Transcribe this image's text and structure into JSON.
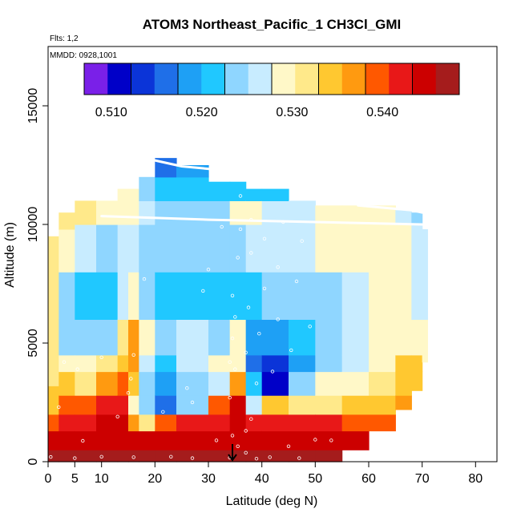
{
  "chart_data": {
    "type": "heatmap",
    "title": "ATOM3 Northeast_Pacific_1 CH3Cl_GMI",
    "flights_label": "Flts: 1,2",
    "dates_label": "MMDD: 0928,1001",
    "xlabel": "Latitude (deg N)",
    "ylabel": "Altitude (m)",
    "xlim": [
      0,
      84
    ],
    "ylim": [
      0,
      17500
    ],
    "xticks": [
      0,
      5,
      10,
      20,
      30,
      40,
      50,
      60,
      70,
      80
    ],
    "xtick_labels": [
      "0",
      "5",
      "10",
      "20",
      "30",
      "40",
      "50",
      "60",
      "70",
      "80"
    ],
    "yticks": [
      0,
      5000,
      10000,
      15000
    ],
    "ytick_labels": [
      "0",
      "5000",
      "10000",
      "15000"
    ],
    "colorbar": {
      "min": 0.507,
      "max": 0.5485,
      "colors": [
        "#7a20e8",
        "#0000c8",
        "#0b34d8",
        "#1f6fe8",
        "#1ea0f5",
        "#20c8ff",
        "#8fd6ff",
        "#c8ecff",
        "#fff8c8",
        "#ffe98a",
        "#ffc830",
        "#ff9a10",
        "#ff5800",
        "#e81818",
        "#cc0000",
        "#a51c1c"
      ],
      "ticks": [
        0.51,
        0.52,
        0.53,
        0.54
      ],
      "tick_labels": [
        "0.510",
        "0.520",
        "0.530",
        "0.540"
      ]
    },
    "columns": [
      {
        "lat": [
          0,
          2
        ],
        "top": 9500,
        "levels": [
          [
            0,
            0.548
          ],
          [
            500,
            0.545
          ],
          [
            1300,
            0.539
          ],
          [
            2000,
            0.534
          ],
          [
            3200,
            0.531
          ],
          [
            4500,
            0.531
          ],
          [
            6000,
            0.531
          ],
          [
            8000,
            0.531
          ]
        ]
      },
      {
        "lat": [
          2,
          5
        ],
        "top": 10500,
        "levels": [
          [
            0,
            0.548
          ],
          [
            500,
            0.545
          ],
          [
            1300,
            0.541
          ],
          [
            2000,
            0.539
          ],
          [
            2800,
            0.533
          ],
          [
            3800,
            0.529
          ],
          [
            4500,
            0.524
          ],
          [
            6000,
            0.523
          ],
          [
            8000,
            0.529
          ],
          [
            9800,
            0.532
          ]
        ]
      },
      {
        "lat": [
          5,
          9
        ],
        "top": 11000,
        "levels": [
          [
            0,
            0.548
          ],
          [
            500,
            0.545
          ],
          [
            1300,
            0.543
          ],
          [
            2000,
            0.54
          ],
          [
            2800,
            0.531
          ],
          [
            3800,
            0.528
          ],
          [
            4500,
            0.523
          ],
          [
            6000,
            0.522
          ],
          [
            8000,
            0.527
          ],
          [
            10000,
            0.531
          ]
        ]
      },
      {
        "lat": [
          9,
          13
        ],
        "top": 11000,
        "levels": [
          [
            0,
            0.548
          ],
          [
            500,
            0.545
          ],
          [
            1300,
            0.544
          ],
          [
            2000,
            0.541
          ],
          [
            2800,
            0.537
          ],
          [
            3800,
            0.531
          ],
          [
            4500,
            0.524
          ],
          [
            6000,
            0.522
          ],
          [
            8000,
            0.525
          ],
          [
            10000,
            0.528
          ]
        ]
      },
      {
        "lat": [
          13,
          15
        ],
        "top": 11500,
        "levels": [
          [
            0,
            0.548
          ],
          [
            500,
            0.545
          ],
          [
            1300,
            0.544
          ],
          [
            2000,
            0.542
          ],
          [
            2800,
            0.539
          ],
          [
            3800,
            0.535
          ],
          [
            4500,
            0.532
          ],
          [
            6000,
            0.527
          ],
          [
            8000,
            0.526
          ],
          [
            10000,
            0.528
          ]
        ]
      },
      {
        "lat": [
          15,
          17
        ],
        "top": 11500,
        "levels": [
          [
            0,
            0.548
          ],
          [
            500,
            0.545
          ],
          [
            1300,
            0.537
          ],
          [
            2000,
            0.53
          ],
          [
            2800,
            0.535
          ],
          [
            3800,
            0.538
          ],
          [
            4500,
            0.536
          ],
          [
            6000,
            0.528
          ],
          [
            8000,
            0.526
          ],
          [
            10000,
            0.528
          ]
        ]
      },
      {
        "lat": [
          17,
          20
        ],
        "top": 12000,
        "levels": [
          [
            0,
            0.548
          ],
          [
            500,
            0.545
          ],
          [
            1300,
            0.531
          ],
          [
            2000,
            0.524
          ],
          [
            2800,
            0.524
          ],
          [
            3800,
            0.527
          ],
          [
            4500,
            0.528
          ],
          [
            6000,
            0.524
          ],
          [
            8000,
            0.523
          ],
          [
            10000,
            0.526
          ],
          [
            11000,
            0.523
          ]
        ]
      },
      {
        "lat": [
          20,
          24
        ],
        "top": 12800,
        "levels": [
          [
            0,
            0.548
          ],
          [
            500,
            0.545
          ],
          [
            1300,
            0.54
          ],
          [
            2000,
            0.516
          ],
          [
            2800,
            0.518
          ],
          [
            3800,
            0.522
          ],
          [
            4500,
            0.523
          ],
          [
            6000,
            0.521
          ],
          [
            8000,
            0.523
          ],
          [
            10000,
            0.525
          ],
          [
            11000,
            0.521
          ],
          [
            12000,
            0.516
          ]
        ]
      },
      {
        "lat": [
          24,
          30
        ],
        "top": 12500,
        "levels": [
          [
            0,
            0.548
          ],
          [
            500,
            0.545
          ],
          [
            1300,
            0.541
          ],
          [
            2000,
            0.523
          ],
          [
            2800,
            0.524
          ],
          [
            3800,
            0.526
          ],
          [
            4500,
            0.526
          ],
          [
            6000,
            0.522
          ],
          [
            8000,
            0.523
          ],
          [
            10000,
            0.525
          ],
          [
            11000,
            0.521
          ],
          [
            12000,
            0.518
          ]
        ]
      },
      {
        "lat": [
          30,
          34
        ],
        "top": 11800,
        "levels": [
          [
            0,
            0.548
          ],
          [
            500,
            0.545
          ],
          [
            1300,
            0.543
          ],
          [
            2000,
            0.54
          ],
          [
            2800,
            0.527
          ],
          [
            3800,
            0.53
          ],
          [
            4500,
            0.525
          ],
          [
            6000,
            0.522
          ],
          [
            8000,
            0.524
          ],
          [
            10000,
            0.525
          ],
          [
            11000,
            0.521
          ]
        ]
      },
      {
        "lat": [
          34,
          37
        ],
        "top": 11800,
        "levels": [
          [
            0,
            0.548
          ],
          [
            500,
            0.545
          ],
          [
            1300,
            0.544
          ],
          [
            2000,
            0.545
          ],
          [
            2800,
            0.537
          ],
          [
            3800,
            0.53
          ],
          [
            4500,
            0.528
          ],
          [
            6000,
            0.522
          ],
          [
            8000,
            0.524
          ],
          [
            10000,
            0.528
          ],
          [
            11000,
            0.521
          ]
        ]
      },
      {
        "lat": [
          37,
          40
        ],
        "top": 11500,
        "levels": [
          [
            0,
            0.548
          ],
          [
            500,
            0.545
          ],
          [
            1300,
            0.543
          ],
          [
            2000,
            0.527
          ],
          [
            2800,
            0.52
          ],
          [
            3800,
            0.515
          ],
          [
            4500,
            0.518
          ],
          [
            6000,
            0.521
          ],
          [
            8000,
            0.526
          ],
          [
            10000,
            0.529
          ],
          [
            11000,
            0.521
          ]
        ]
      },
      {
        "lat": [
          40,
          45
        ],
        "top": 11500,
        "levels": [
          [
            0,
            0.548
          ],
          [
            500,
            0.545
          ],
          [
            1300,
            0.542
          ],
          [
            2000,
            0.534
          ],
          [
            2800,
            0.512
          ],
          [
            3800,
            0.513
          ],
          [
            4500,
            0.519
          ],
          [
            6000,
            0.523
          ],
          [
            8000,
            0.527
          ],
          [
            10000,
            0.527
          ],
          [
            11000,
            0.521
          ]
        ]
      },
      {
        "lat": [
          45,
          50
        ],
        "top": 11000,
        "levels": [
          [
            0,
            0.548
          ],
          [
            500,
            0.545
          ],
          [
            1300,
            0.542
          ],
          [
            2000,
            0.532
          ],
          [
            2800,
            0.523
          ],
          [
            3800,
            0.518
          ],
          [
            4500,
            0.521
          ],
          [
            6000,
            0.524
          ],
          [
            8000,
            0.527
          ],
          [
            10000,
            0.527
          ]
        ]
      },
      {
        "lat": [
          50,
          55
        ],
        "top": 10800,
        "levels": [
          [
            0,
            0.548
          ],
          [
            500,
            0.545
          ],
          [
            1300,
            0.541
          ],
          [
            2000,
            0.532
          ],
          [
            2800,
            0.529
          ],
          [
            3800,
            0.525
          ],
          [
            4500,
            0.523
          ],
          [
            6000,
            0.525
          ],
          [
            8000,
            0.528
          ],
          [
            10000,
            0.528
          ]
        ]
      },
      {
        "lat": [
          55,
          60
        ],
        "top": 10800,
        "levels": [
          [
            500,
            0.545
          ],
          [
            1300,
            0.54
          ],
          [
            2000,
            0.533
          ],
          [
            2800,
            0.53
          ],
          [
            3800,
            0.527
          ],
          [
            4500,
            0.526
          ],
          [
            6000,
            0.527
          ],
          [
            8000,
            0.529
          ],
          [
            10000,
            0.528
          ]
        ]
      },
      {
        "lat": [
          60,
          65
        ],
        "top": 10800,
        "levels": [
          [
            1300,
            0.539
          ],
          [
            2000,
            0.535
          ],
          [
            2800,
            0.532
          ],
          [
            3800,
            0.529
          ],
          [
            4500,
            0.528
          ],
          [
            6000,
            0.528
          ],
          [
            8000,
            0.529
          ],
          [
            10000,
            0.528
          ]
        ]
      },
      {
        "lat": [
          65,
          68
        ],
        "top": 10600,
        "levels": [
          [
            2200,
            0.537
          ],
          [
            2800,
            0.535
          ],
          [
            3800,
            0.533
          ],
          [
            4500,
            0.53
          ],
          [
            6000,
            0.528
          ],
          [
            8000,
            0.528
          ],
          [
            10000,
            0.527
          ]
        ]
      },
      {
        "lat": [
          68,
          70
        ],
        "top": 10500,
        "levels": [
          [
            3000,
            0.535
          ],
          [
            3800,
            0.533
          ],
          [
            4500,
            0.53
          ],
          [
            6000,
            0.527
          ],
          [
            8000,
            0.527
          ],
          [
            10000,
            0.524
          ]
        ]
      },
      {
        "lat": [
          70,
          71
        ],
        "top": 9800,
        "levels": [
          [
            4200,
            0.53
          ],
          [
            6000,
            0.527
          ],
          [
            8000,
            0.526
          ]
        ]
      }
    ],
    "flight_tracks": [
      {
        "points": [
          [
            10,
            10350
          ],
          [
            30,
            10200
          ],
          [
            50,
            10100
          ],
          [
            70,
            10000
          ]
        ]
      },
      {
        "points": [
          [
            20,
            12700
          ],
          [
            25,
            12450
          ],
          [
            32,
            12300
          ]
        ]
      },
      {
        "points": [
          [
            58,
            10800
          ],
          [
            68,
            10600
          ],
          [
            70,
            10500
          ]
        ]
      }
    ],
    "observation_points": [
      [
        0.5,
        200
      ],
      [
        5,
        150
      ],
      [
        6.5,
        880
      ],
      [
        10,
        210
      ],
      [
        16,
        190
      ],
      [
        23,
        210
      ],
      [
        27,
        150
      ],
      [
        34,
        170
      ],
      [
        39,
        130
      ],
      [
        41.5,
        190
      ],
      [
        47,
        150
      ],
      [
        2,
        2300
      ],
      [
        3,
        4200
      ],
      [
        5.5,
        3900
      ],
      [
        10,
        4400
      ],
      [
        15,
        2900
      ],
      [
        15.5,
        3500
      ],
      [
        16,
        4500
      ],
      [
        21.5,
        2100
      ],
      [
        27,
        2500
      ],
      [
        34,
        2700
      ],
      [
        34,
        4200
      ],
      [
        34.5,
        5200
      ],
      [
        35,
        3900
      ],
      [
        35,
        6100
      ],
      [
        34.5,
        7000
      ],
      [
        35.5,
        8600
      ],
      [
        36,
        9800
      ],
      [
        36,
        11200
      ],
      [
        37,
        4600
      ],
      [
        37.5,
        6500
      ],
      [
        38,
        8800
      ],
      [
        38,
        10200
      ],
      [
        39,
        3300
      ],
      [
        39.5,
        5400
      ],
      [
        40.5,
        7300
      ],
      [
        40.5,
        9400
      ],
      [
        42,
        3800
      ],
      [
        43,
        6000
      ],
      [
        43,
        8200
      ],
      [
        44,
        10100
      ],
      [
        45.5,
        4700
      ],
      [
        46.5,
        7600
      ],
      [
        47.5,
        9300
      ],
      [
        49,
        5700
      ],
      [
        18,
        7700
      ],
      [
        29,
        7200
      ],
      [
        32.5,
        9900
      ],
      [
        30,
        8100
      ],
      [
        37,
        1300
      ],
      [
        38,
        1800
      ],
      [
        34.5,
        1100
      ],
      [
        35.5,
        650
      ],
      [
        37,
        380
      ],
      [
        31.5,
        900
      ],
      [
        45,
        650
      ],
      [
        50,
        930
      ],
      [
        53,
        900
      ],
      [
        26,
        3100
      ],
      [
        13,
        1900
      ]
    ],
    "arrow_marker": {
      "lat": 34.5,
      "label": ""
    }
  }
}
